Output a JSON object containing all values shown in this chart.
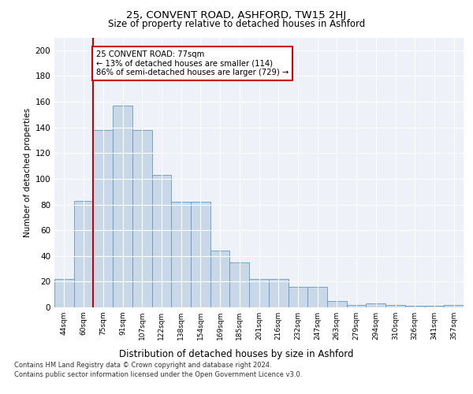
{
  "title1": "25, CONVENT ROAD, ASHFORD, TW15 2HJ",
  "title2": "Size of property relative to detached houses in Ashford",
  "xlabel": "Distribution of detached houses by size in Ashford",
  "ylabel": "Number of detached properties",
  "categories": [
    "44sqm",
    "60sqm",
    "75sqm",
    "91sqm",
    "107sqm",
    "122sqm",
    "138sqm",
    "154sqm",
    "169sqm",
    "185sqm",
    "201sqm",
    "216sqm",
    "232sqm",
    "247sqm",
    "263sqm",
    "279sqm",
    "294sqm",
    "310sqm",
    "326sqm",
    "341sqm",
    "357sqm"
  ],
  "values": [
    22,
    83,
    138,
    157,
    138,
    103,
    82,
    82,
    44,
    35,
    22,
    22,
    16,
    16,
    5,
    2,
    3,
    2,
    1,
    1,
    2
  ],
  "bar_color": "#c8d8e8",
  "bar_edge_color": "#6699bb",
  "background_color": "#eef2f8",
  "grid_color": "#ffffff",
  "annotation_box_color": "#cc0000",
  "annotation_text": "25 CONVENT ROAD: 77sqm\n← 13% of detached houses are smaller (114)\n86% of semi-detached houses are larger (729) →",
  "vline_x": 1.5,
  "vline_color": "#cc0000",
  "ylim": [
    0,
    210
  ],
  "yticks": [
    0,
    20,
    40,
    60,
    80,
    100,
    120,
    140,
    160,
    180,
    200
  ],
  "footer1": "Contains HM Land Registry data © Crown copyright and database right 2024.",
  "footer2": "Contains public sector information licensed under the Open Government Licence v3.0."
}
